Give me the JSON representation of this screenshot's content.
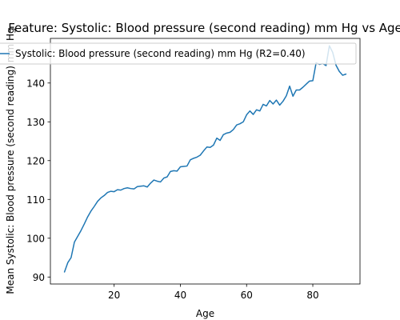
{
  "chart_data": {
    "type": "line",
    "title": "Feature: Systolic: Blood pressure (second reading) mm Hg vs Age",
    "xlabel": "Age",
    "ylabel": "Mean Systolic: Blood pressure (second reading) mm Hg",
    "xlim": [
      0.75,
      94.25
    ],
    "ylim": [
      88.2,
      151.5
    ],
    "x_ticks": [
      20,
      40,
      60,
      80
    ],
    "y_ticks": [
      90,
      100,
      110,
      120,
      130,
      140
    ],
    "grid": false,
    "legend_position": "top-right",
    "series": [
      {
        "name": "Systolic: Blood pressure (second reading) mm Hg (R2=0.40)",
        "color": "#1f77b4",
        "x": [
          5,
          6,
          7,
          8,
          9,
          10,
          11,
          12,
          13,
          14,
          15,
          16,
          17,
          18,
          19,
          20,
          21,
          22,
          23,
          24,
          25,
          26,
          27,
          28,
          29,
          30,
          31,
          32,
          33,
          34,
          35,
          36,
          37,
          38,
          39,
          40,
          41,
          42,
          43,
          44,
          45,
          46,
          47,
          48,
          49,
          50,
          51,
          52,
          53,
          54,
          55,
          56,
          57,
          58,
          59,
          60,
          61,
          62,
          63,
          64,
          65,
          66,
          67,
          68,
          69,
          70,
          71,
          72,
          73,
          74,
          75,
          76,
          77,
          78,
          79,
          80,
          81,
          82,
          83,
          84,
          85,
          86,
          87,
          88,
          89,
          90
        ],
        "values": [
          91.3,
          93.7,
          95.0,
          99.0,
          100.5,
          102.0,
          103.7,
          105.5,
          107.0,
          108.2,
          109.5,
          110.4,
          111.0,
          111.8,
          112.1,
          112.0,
          112.5,
          112.4,
          112.8,
          113.0,
          112.8,
          112.7,
          113.3,
          113.4,
          113.5,
          113.2,
          114.2,
          115.0,
          114.7,
          114.5,
          115.5,
          115.8,
          117.2,
          117.4,
          117.3,
          118.4,
          118.5,
          118.6,
          120.2,
          120.6,
          120.9,
          121.4,
          122.5,
          123.5,
          123.4,
          124.0,
          125.8,
          125.2,
          126.7,
          127.1,
          127.3,
          128.0,
          129.2,
          129.5,
          130.0,
          131.8,
          132.8,
          131.9,
          133.1,
          132.8,
          134.5,
          134.1,
          135.5,
          134.6,
          135.6,
          134.3,
          135.3,
          136.7,
          139.2,
          136.6,
          138.2,
          138.2,
          138.9,
          139.7,
          140.5,
          140.6,
          145.2,
          144.8,
          145.0,
          144.5,
          149.6,
          147.9,
          144.6,
          143.0,
          142.0,
          142.3
        ]
      }
    ]
  }
}
